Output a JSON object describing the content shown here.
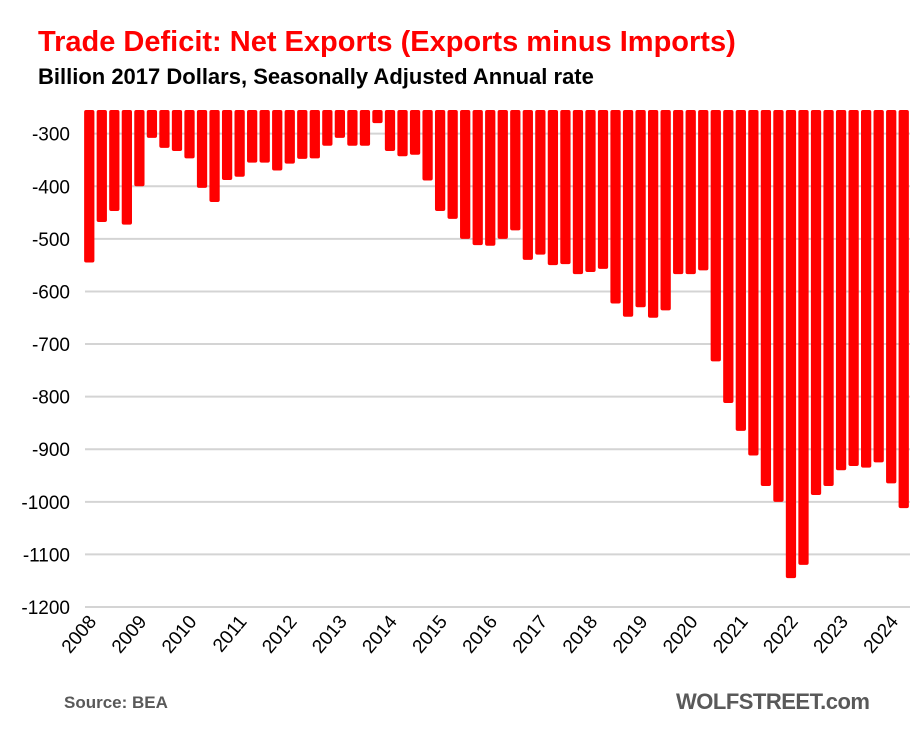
{
  "chart_data": {
    "type": "bar",
    "title": "Trade Deficit: Net Exports (Exports minus Imports)",
    "subtitle": "Billion 2017 Dollars, Seasonally Adjusted Annual rate",
    "xlabel": "",
    "ylabel": "",
    "ylim": [
      -1200,
      -255
    ],
    "yticks": [
      -300,
      -400,
      -500,
      -600,
      -700,
      -800,
      -900,
      -1000,
      -1100,
      -1200
    ],
    "grid": true,
    "bar_color": "#ff0000",
    "x_tick_labels": [
      "2008",
      "2009",
      "2010",
      "2011",
      "2012",
      "2013",
      "2014",
      "2015",
      "2016",
      "2017",
      "2018",
      "2019",
      "2020",
      "2021",
      "2022",
      "2023",
      "2024"
    ],
    "frequency": "quarterly",
    "values": [
      -545,
      -468,
      -447,
      -473,
      -400,
      -308,
      -327,
      -333,
      -347,
      -403,
      -430,
      -388,
      -382,
      -355,
      -355,
      -370,
      -357,
      -348,
      -347,
      -323,
      -308,
      -323,
      -323,
      -280,
      -333,
      -343,
      -340,
      -389,
      -447,
      -462,
      -500,
      -512,
      -513,
      -500,
      -484,
      -540,
      -530,
      -550,
      -548,
      -567,
      -563,
      -557,
      -623,
      -648,
      -630,
      -650,
      -636,
      -567,
      -567,
      -560,
      -733,
      -812,
      -865,
      -912,
      -970,
      -1000,
      -1145,
      -1120,
      -987,
      -970,
      -940,
      -932,
      -935,
      -925,
      -965,
      -1012
    ]
  },
  "footer": {
    "source": "Source: BEA",
    "brand": "WOLFSTREET.com"
  }
}
